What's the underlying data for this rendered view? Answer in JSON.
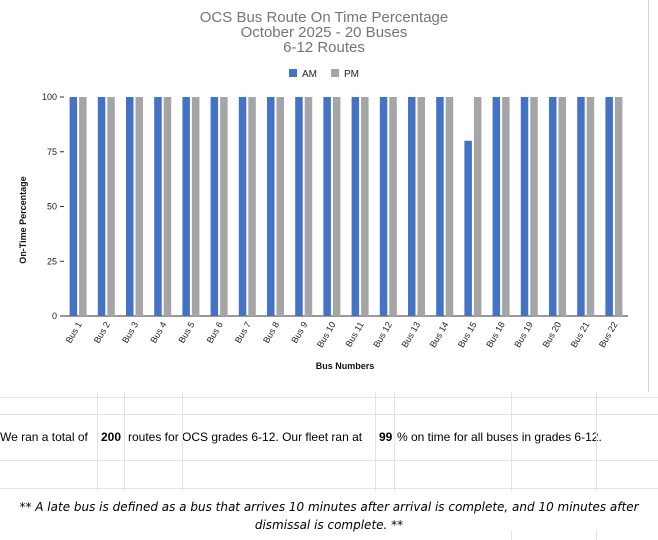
{
  "chart_data": {
    "type": "bar",
    "title": [
      "OCS Bus Route On Time Percentage",
      "October 2025 - 20 Buses",
      "6-12 Routes"
    ],
    "xlabel": "Bus Numbers",
    "ylabel": "On-Time Percentage",
    "ylim": [
      0,
      100
    ],
    "yticks": [
      "0",
      "25",
      "50",
      "75",
      "100"
    ],
    "categories": [
      "Bus 1",
      "Bus 2",
      "Bus 3",
      "Bus 4",
      "Bus 5",
      "Bus 6",
      "Bus 7",
      "Bus 8",
      "Bus 9",
      "Bus 10",
      "Bus 11",
      "Bus 12",
      "Bus 13",
      "Bus 14",
      "Bus 15",
      "Bus 18",
      "Bus 19",
      "Bus 20",
      "Bus 21",
      "Bus 22"
    ],
    "series": [
      {
        "name": "AM",
        "color": "#4472c4",
        "values": [
          100,
          100,
          100,
          100,
          100,
          100,
          100,
          100,
          100,
          100,
          100,
          100,
          100,
          100,
          80,
          100,
          100,
          100,
          100,
          100
        ]
      },
      {
        "name": "PM",
        "color": "#a5a5a5",
        "values": [
          100,
          100,
          100,
          100,
          100,
          100,
          100,
          100,
          100,
          100,
          100,
          100,
          100,
          100,
          100,
          100,
          100,
          100,
          100,
          100
        ]
      }
    ],
    "legend_position": "top",
    "grid": false
  },
  "summary": {
    "prefix": "We ran a total of",
    "total_routes": "200",
    "middle": "routes for OCS grades 6-12. Our fleet ran at",
    "on_time_percent": "99",
    "suffix": "% on time for all buses in grades 6-12."
  },
  "note": "** A late bus is defined as a bus that arrives 10 minutes after arrival is complete, and 10 minutes after dismissal is complete. **"
}
